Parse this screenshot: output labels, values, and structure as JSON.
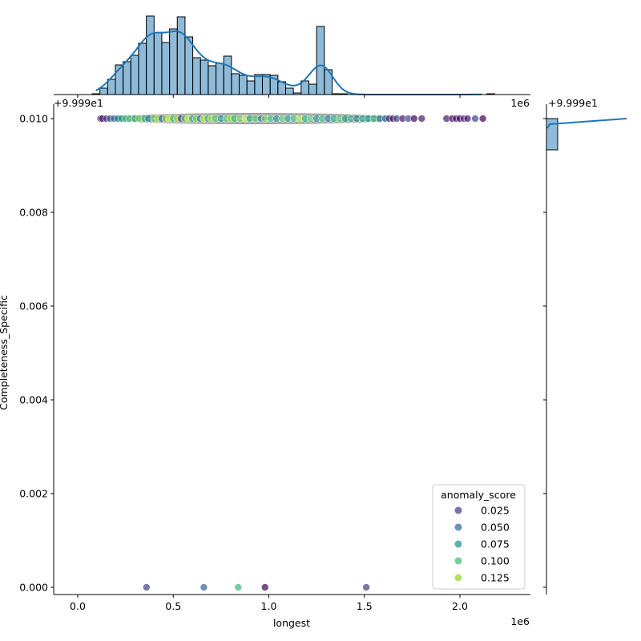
{
  "chart_data": {
    "type": "scatter",
    "subtype": "jointplot",
    "xlabel": "longest",
    "ylabel": "Completeness_Specific",
    "x_offset_text": "1e6",
    "y_offset_text": "+9.999e1",
    "top_marginal_offset_texts": [
      "+9.999e1",
      "1e6"
    ],
    "right_marginal_offset_text": "+9.999e1",
    "xlim": [
      -0.13,
      2.37
    ],
    "ylim": [
      -0.0002,
      0.0103
    ],
    "x_ticks": [
      "0.0",
      "0.5",
      "1.0",
      "1.5",
      "2.0"
    ],
    "y_ticks": [
      "0.000",
      "0.002",
      "0.004",
      "0.006",
      "0.008",
      "0.010"
    ],
    "grid": false,
    "legend": {
      "title": "anomaly_score",
      "placement": "lower-right",
      "entries": [
        {
          "label": "0.025",
          "color": "#7873aa"
        },
        {
          "label": "0.050",
          "color": "#6b93b5"
        },
        {
          "label": "0.075",
          "color": "#5bb1ab"
        },
        {
          "label": "0.100",
          "color": "#72cf9e"
        },
        {
          "label": "0.125",
          "color": "#b5de6b"
        }
      ]
    },
    "hue_range": [
      0.0,
      0.14
    ],
    "colormap": "viridis",
    "points": [
      [
        0.12,
        0.01,
        0.005
      ],
      [
        0.13,
        0.01,
        0.01
      ],
      [
        0.15,
        0.01,
        0.02
      ],
      [
        0.17,
        0.01,
        0.03
      ],
      [
        0.19,
        0.01,
        0.045
      ],
      [
        0.21,
        0.01,
        0.06
      ],
      [
        0.23,
        0.01,
        0.07
      ],
      [
        0.25,
        0.01,
        0.09
      ],
      [
        0.27,
        0.01,
        0.1
      ],
      [
        0.3,
        0.01,
        0.08
      ],
      [
        0.32,
        0.01,
        0.11
      ],
      [
        0.35,
        0.01,
        0.09
      ],
      [
        0.37,
        0.01,
        0.06
      ],
      [
        0.4,
        0.01,
        0.1
      ],
      [
        0.42,
        0.01,
        0.12
      ],
      [
        0.44,
        0.01,
        0.04
      ],
      [
        0.46,
        0.01,
        0.11
      ],
      [
        0.48,
        0.01,
        0.13
      ],
      [
        0.5,
        0.01,
        0.09
      ],
      [
        0.52,
        0.01,
        0.12
      ],
      [
        0.54,
        0.01,
        0.02
      ],
      [
        0.56,
        0.01,
        0.1
      ],
      [
        0.58,
        0.01,
        0.13
      ],
      [
        0.6,
        0.01,
        0.08
      ],
      [
        0.62,
        0.01,
        0.11
      ],
      [
        0.64,
        0.01,
        0.06
      ],
      [
        0.66,
        0.01,
        0.13
      ],
      [
        0.68,
        0.01,
        0.09
      ],
      [
        0.7,
        0.01,
        0.12
      ],
      [
        0.72,
        0.01,
        0.1
      ],
      [
        0.75,
        0.01,
        0.07
      ],
      [
        0.78,
        0.01,
        0.1
      ],
      [
        0.8,
        0.01,
        0.12
      ],
      [
        0.82,
        0.01,
        0.09
      ],
      [
        0.85,
        0.01,
        0.11
      ],
      [
        0.88,
        0.01,
        0.13
      ],
      [
        0.9,
        0.01,
        0.08
      ],
      [
        0.93,
        0.01,
        0.1
      ],
      [
        0.96,
        0.01,
        0.05
      ],
      [
        0.98,
        0.01,
        0.11
      ],
      [
        1.01,
        0.01,
        0.09
      ],
      [
        1.04,
        0.01,
        0.06
      ],
      [
        1.07,
        0.01,
        0.1
      ],
      [
        1.1,
        0.01,
        0.07
      ],
      [
        1.13,
        0.01,
        0.09
      ],
      [
        1.16,
        0.01,
        0.12
      ],
      [
        1.19,
        0.01,
        0.08
      ],
      [
        1.22,
        0.01,
        0.1
      ],
      [
        1.25,
        0.01,
        0.06
      ],
      [
        1.28,
        0.01,
        0.09
      ],
      [
        1.31,
        0.01,
        0.05
      ],
      [
        1.34,
        0.01,
        0.08
      ],
      [
        1.37,
        0.01,
        0.1
      ],
      [
        1.4,
        0.01,
        0.07
      ],
      [
        1.43,
        0.01,
        0.09
      ],
      [
        1.46,
        0.01,
        0.06
      ],
      [
        1.49,
        0.01,
        0.08
      ],
      [
        1.52,
        0.01,
        0.07
      ],
      [
        1.55,
        0.01,
        0.09
      ],
      [
        1.58,
        0.01,
        0.06
      ],
      [
        1.61,
        0.01,
        0.05
      ],
      [
        1.63,
        0.01,
        0.02
      ],
      [
        1.65,
        0.01,
        0.01
      ],
      [
        1.67,
        0.01,
        0.03
      ],
      [
        1.7,
        0.01,
        0.01
      ],
      [
        1.73,
        0.01,
        0.03
      ],
      [
        1.76,
        0.01,
        0.0
      ],
      [
        1.8,
        0.01,
        0.01
      ],
      [
        1.93,
        0.01,
        0.01
      ],
      [
        1.96,
        0.01,
        0.0
      ],
      [
        1.98,
        0.01,
        0.01
      ],
      [
        2.0,
        0.01,
        0.0
      ],
      [
        2.02,
        0.01,
        0.02
      ],
      [
        2.04,
        0.01,
        0.01
      ],
      [
        2.08,
        0.01,
        0.03
      ],
      [
        2.12,
        0.01,
        0.0
      ],
      [
        0.36,
        0.0,
        0.025
      ],
      [
        0.66,
        0.0,
        0.045
      ],
      [
        0.84,
        0.0,
        0.095
      ],
      [
        0.98,
        0.0,
        0.0
      ],
      [
        1.51,
        0.0,
        0.025
      ]
    ],
    "x_histogram": {
      "bin_start": 0.0755,
      "bin_width": 0.0405,
      "counts": [
        1,
        8,
        19,
        37,
        41,
        49,
        64,
        98,
        77,
        65,
        82,
        97,
        72,
        46,
        43,
        36,
        39,
        48,
        26,
        24,
        17,
        25,
        25,
        24,
        16,
        8,
        2,
        17,
        13,
        85,
        31,
        1,
        1,
        0,
        0,
        0,
        0,
        0,
        0,
        0,
        0,
        0,
        0,
        0,
        0,
        0,
        0,
        0,
        0,
        0,
        0,
        1
      ]
    },
    "y_histogram": {
      "bins": [
        0.0095,
        0.01
      ],
      "counts": [
        1
      ]
    },
    "hist_color": "#1f77b4"
  }
}
